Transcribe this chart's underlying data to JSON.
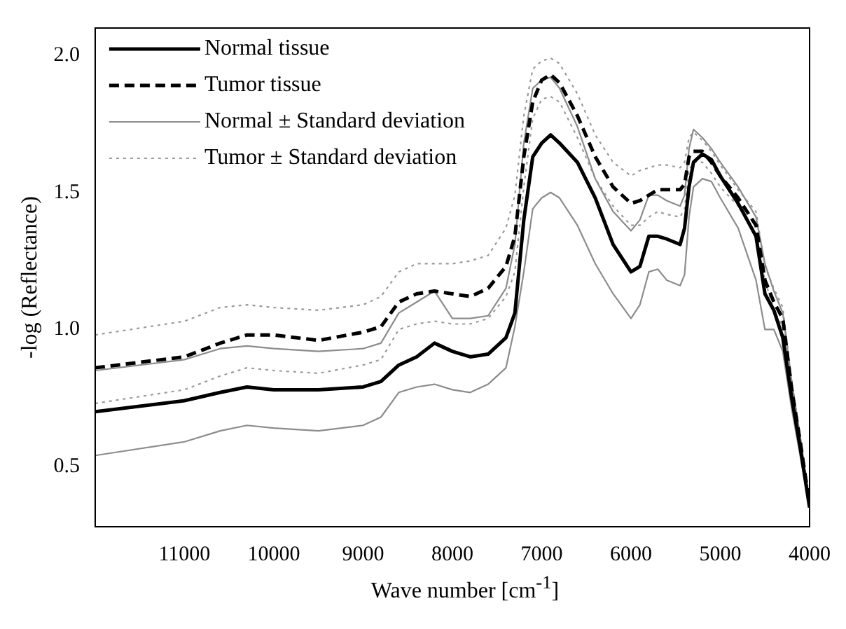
{
  "chart_data": {
    "type": "line",
    "xlabel": "Wave number [cm$^{-1}$]",
    "ylabel": "-log (Reflectance)",
    "x": [
      12000,
      11000,
      10600,
      10300,
      10000,
      9500,
      9000,
      8800,
      8600,
      8400,
      8200,
      8000,
      7800,
      7600,
      7400,
      7300,
      7200,
      7100,
      7000,
      6900,
      6800,
      6600,
      6400,
      6200,
      6000,
      5900,
      5800,
      5700,
      5600,
      5450,
      5400,
      5350,
      5300,
      5200,
      5100,
      5000,
      4800,
      4600,
      4500,
      4400,
      4300,
      4200,
      4100,
      4000
    ],
    "series": [
      {
        "name": "Normal tissue",
        "color": "#000000",
        "line_style": "solid",
        "values": [
          0.7,
          0.74,
          0.77,
          0.79,
          0.78,
          0.78,
          0.79,
          0.81,
          0.87,
          0.9,
          0.95,
          0.92,
          0.9,
          0.91,
          0.97,
          1.06,
          1.4,
          1.63,
          1.68,
          1.71,
          1.68,
          1.61,
          1.48,
          1.31,
          1.21,
          1.23,
          1.34,
          1.34,
          1.33,
          1.31,
          1.37,
          1.52,
          1.61,
          1.64,
          1.62,
          1.56,
          1.46,
          1.34,
          1.13,
          1.07,
          0.97,
          0.75,
          0.56,
          0.35
        ]
      },
      {
        "name": "Tumor tissue",
        "color": "#000000",
        "line_style": "dashed",
        "values": [
          0.86,
          0.9,
          0.95,
          0.98,
          0.98,
          0.96,
          0.99,
          1.01,
          1.1,
          1.13,
          1.14,
          1.13,
          1.12,
          1.15,
          1.23,
          1.34,
          1.63,
          1.83,
          1.91,
          1.93,
          1.9,
          1.78,
          1.63,
          1.52,
          1.46,
          1.47,
          1.49,
          1.51,
          1.51,
          1.51,
          1.53,
          1.63,
          1.65,
          1.65,
          1.61,
          1.56,
          1.48,
          1.38,
          1.18,
          1.1,
          1.04,
          0.78,
          0.58,
          0.36
        ]
      },
      {
        "name": "Normal ± Standard deviation",
        "color": "#8c8c8c",
        "line_style": "solid",
        "values": [
          0.85,
          0.89,
          0.93,
          0.94,
          0.93,
          0.92,
          0.93,
          0.95,
          1.06,
          1.1,
          1.14,
          1.04,
          1.04,
          1.05,
          1.15,
          1.31,
          1.68,
          1.88,
          1.91,
          1.92,
          1.88,
          1.74,
          1.55,
          1.43,
          1.36,
          1.4,
          1.49,
          1.49,
          1.47,
          1.45,
          1.49,
          1.66,
          1.73,
          1.7,
          1.66,
          1.61,
          1.52,
          1.41,
          1.24,
          1.14,
          1.06,
          0.81,
          0.6,
          0.36
        ]
      },
      {
        "color": "#8c8c8c",
        "line_style": "solid",
        "values": [
          0.54,
          0.59,
          0.63,
          0.65,
          0.64,
          0.63,
          0.65,
          0.68,
          0.77,
          0.79,
          0.8,
          0.78,
          0.77,
          0.8,
          0.86,
          1.01,
          1.21,
          1.44,
          1.48,
          1.5,
          1.48,
          1.38,
          1.24,
          1.13,
          1.04,
          1.09,
          1.21,
          1.22,
          1.18,
          1.16,
          1.2,
          1.41,
          1.52,
          1.55,
          1.54,
          1.48,
          1.37,
          1.18,
          1.0,
          1.0,
          0.92,
          0.71,
          0.53,
          0.35
        ]
      },
      {
        "name": "Tumor ± Standard deviation",
        "color": "#9a9a9a",
        "line_style": "dotted",
        "values": [
          0.98,
          1.03,
          1.08,
          1.09,
          1.08,
          1.07,
          1.09,
          1.12,
          1.21,
          1.24,
          1.24,
          1.24,
          1.25,
          1.27,
          1.37,
          1.49,
          1.78,
          1.95,
          1.98,
          1.99,
          1.97,
          1.86,
          1.71,
          1.61,
          1.56,
          1.58,
          1.59,
          1.6,
          1.6,
          1.59,
          1.61,
          1.7,
          1.72,
          1.69,
          1.65,
          1.6,
          1.51,
          1.43,
          1.23,
          1.15,
          1.08,
          0.81,
          0.6,
          0.38
        ]
      },
      {
        "color": "#9a9a9a",
        "line_style": "dotted",
        "values": [
          0.73,
          0.78,
          0.83,
          0.86,
          0.85,
          0.84,
          0.87,
          0.89,
          1.0,
          1.02,
          1.03,
          1.02,
          1.02,
          1.04,
          1.12,
          1.21,
          1.52,
          1.77,
          1.84,
          1.85,
          1.83,
          1.7,
          1.55,
          1.45,
          1.38,
          1.38,
          1.41,
          1.43,
          1.42,
          1.41,
          1.44,
          1.58,
          1.61,
          1.61,
          1.57,
          1.52,
          1.45,
          1.35,
          1.18,
          1.07,
          1.01,
          0.77,
          0.57,
          0.36
        ]
      }
    ],
    "xlim": [
      12000,
      4000
    ],
    "xticks": [
      11000,
      10000,
      9000,
      8000,
      7000,
      6000,
      5000,
      4000
    ],
    "ylim": [
      0.28,
      2.1
    ],
    "yticks": [
      0.5,
      {
        "value": 1,
        "label": "1.0"
      },
      1.5,
      {
        "value": 2,
        "label": "2.0"
      }
    ],
    "grid": false,
    "legend": "top left",
    "marker": "none"
  }
}
